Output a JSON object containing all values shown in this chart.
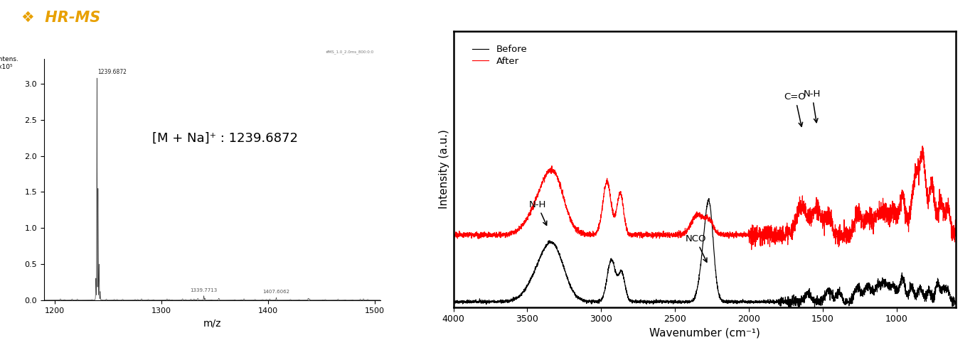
{
  "title": "HR-MS",
  "title_color": "#E8A000",
  "title_fontsize": 15,
  "ms_xlabel": "m/z",
  "ms_annotation": "[M + Na]⁺ : 1239.6872",
  "ms_xlim": [
    1190,
    1505
  ],
  "ms_ylim": [
    0,
    3.35
  ],
  "ms_yticks": [
    0.0,
    0.5,
    1.0,
    1.5,
    2.0,
    2.5,
    3.0
  ],
  "ms_xticks": [
    1200,
    1300,
    1400,
    1500
  ],
  "ftir_xlabel": "Wavenumber (cm⁻¹)",
  "ftir_ylabel": "Intensity (a.u.)",
  "ftir_xlim": [
    4000,
    600
  ],
  "ftir_xticks": [
    4000,
    3500,
    3000,
    2500,
    2000,
    1500,
    1000
  ],
  "before_color": "#000000",
  "after_color": "#FF0000",
  "legend_before": "Before",
  "legend_after": "After"
}
